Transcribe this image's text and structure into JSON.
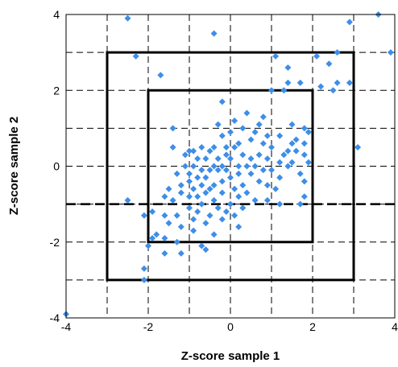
{
  "chart_data": {
    "type": "scatter",
    "title": "",
    "xlabel": "Z-score sample 1",
    "ylabel": "Z-score sample 2",
    "xlim": [
      -4,
      4
    ],
    "ylim": [
      -4,
      4
    ],
    "x_ticks": [
      -4,
      -2,
      0,
      2,
      4
    ],
    "y_ticks": [
      -4,
      -2,
      0,
      2,
      4
    ],
    "x_tick_labels": [
      "-4",
      "-2",
      "0",
      "2",
      "4"
    ],
    "y_tick_labels": [
      "-4",
      "-2",
      "0",
      "2",
      "4"
    ],
    "grid": true,
    "grid_step": 1,
    "grid_style": "dashed",
    "marker": "diamond",
    "marker_color": "#3d8ee8",
    "reference_boxes": [
      {
        "xmin": -3,
        "xmax": 3,
        "ymin": -3,
        "ymax": 3,
        "style": "solid"
      },
      {
        "xmin": -2,
        "xmax": 2,
        "ymin": -2,
        "ymax": 2,
        "style": "solid"
      }
    ],
    "reference_lines": [
      {
        "orientation": "horizontal",
        "y": -1,
        "style": "dashed"
      }
    ],
    "series": [
      {
        "points": [
          [
            -2.5,
            3.9
          ],
          [
            -0.4,
            3.5
          ],
          [
            3.6,
            4.0
          ],
          [
            2.9,
            3.8
          ],
          [
            2.6,
            3.0
          ],
          [
            3.9,
            3.0
          ],
          [
            2.1,
            2.9
          ],
          [
            1.1,
            2.9
          ],
          [
            -2.3,
            2.9
          ],
          [
            2.4,
            2.7
          ],
          [
            1.4,
            2.6
          ],
          [
            -1.7,
            2.4
          ],
          [
            1.4,
            2.2
          ],
          [
            1.7,
            2.2
          ],
          [
            2.2,
            2.1
          ],
          [
            2.6,
            2.2
          ],
          [
            2.9,
            2.2
          ],
          [
            2.5,
            2.0
          ],
          [
            1.3,
            2.0
          ],
          [
            1.0,
            2.0
          ],
          [
            -0.2,
            1.7
          ],
          [
            0.4,
            1.4
          ],
          [
            0.8,
            1.3
          ],
          [
            -0.3,
            1.1
          ],
          [
            0.1,
            1.2
          ],
          [
            0.7,
            1.1
          ],
          [
            1.5,
            1.1
          ],
          [
            0.3,
            1.0
          ],
          [
            1.8,
            1.0
          ],
          [
            1.9,
            0.9
          ],
          [
            -1.4,
            1.0
          ],
          [
            0.6,
            0.9
          ],
          [
            0.0,
            0.9
          ],
          [
            -0.2,
            0.8
          ],
          [
            0.9,
            0.8
          ],
          [
            1.2,
            0.8
          ],
          [
            1.6,
            0.7
          ],
          [
            1.5,
            0.6
          ],
          [
            1.8,
            0.6
          ],
          [
            0.5,
            0.7
          ],
          [
            0.8,
            0.6
          ],
          [
            0.2,
            0.6
          ],
          [
            0.1,
            0.5
          ],
          [
            -0.1,
            0.5
          ],
          [
            -0.4,
            0.5
          ],
          [
            -0.7,
            0.5
          ],
          [
            1.0,
            0.5
          ],
          [
            1.4,
            0.4
          ],
          [
            1.6,
            0.4
          ],
          [
            1.8,
            0.3
          ],
          [
            -1.4,
            0.5
          ],
          [
            -1.0,
            0.4
          ],
          [
            -0.9,
            0.4
          ],
          [
            -0.5,
            0.4
          ],
          [
            0.3,
            0.3
          ],
          [
            0.7,
            0.3
          ],
          [
            -0.1,
            0.3
          ],
          [
            1.3,
            0.3
          ],
          [
            1.5,
            0.1
          ],
          [
            1.9,
            0.1
          ],
          [
            3.1,
            0.5
          ],
          [
            -1.1,
            0.3
          ],
          [
            -0.8,
            0.2
          ],
          [
            -0.6,
            0.2
          ],
          [
            -0.3,
            0.2
          ],
          [
            0.0,
            0.2
          ],
          [
            0.5,
            0.2
          ],
          [
            0.9,
            0.2
          ],
          [
            1.2,
            0.1
          ],
          [
            0.6,
            0.0
          ],
          [
            0.4,
            0.0
          ],
          [
            0.2,
            0.0
          ],
          [
            -0.2,
            0.0
          ],
          [
            -0.4,
            0.0
          ],
          [
            -0.9,
            0.0
          ],
          [
            -1.1,
            0.0
          ],
          [
            1.4,
            0.0
          ],
          [
            0.8,
            -0.1
          ],
          [
            1.0,
            -0.1
          ],
          [
            -0.1,
            -0.1
          ],
          [
            -0.3,
            -0.1
          ],
          [
            -0.5,
            -0.1
          ],
          [
            -0.7,
            -0.1
          ],
          [
            -1.0,
            -0.2
          ],
          [
            1.7,
            -0.2
          ],
          [
            -1.3,
            -0.2
          ],
          [
            0.2,
            -0.2
          ],
          [
            0.5,
            -0.2
          ],
          [
            0.0,
            -0.3
          ],
          [
            -0.6,
            -0.3
          ],
          [
            -0.8,
            -0.3
          ],
          [
            1.2,
            -0.3
          ],
          [
            1.8,
            -0.4
          ],
          [
            -0.2,
            -0.4
          ],
          [
            0.7,
            -0.4
          ],
          [
            -1.0,
            -0.4
          ],
          [
            -0.4,
            -0.5
          ],
          [
            -0.7,
            -0.5
          ],
          [
            0.3,
            -0.5
          ],
          [
            -1.2,
            -0.5
          ],
          [
            0.9,
            -0.5
          ],
          [
            -1.5,
            -0.6
          ],
          [
            -0.5,
            -0.6
          ],
          [
            -0.9,
            -0.6
          ],
          [
            0.1,
            -0.6
          ],
          [
            1.1,
            -0.6
          ],
          [
            -1.2,
            -0.7
          ],
          [
            -0.2,
            -0.7
          ],
          [
            -0.6,
            -0.7
          ],
          [
            0.4,
            -0.7
          ],
          [
            -1.6,
            -0.8
          ],
          [
            -1.0,
            -0.8
          ],
          [
            -0.8,
            -0.8
          ],
          [
            0.2,
            -0.8
          ],
          [
            1.8,
            -0.8
          ],
          [
            -0.4,
            -0.9
          ],
          [
            0.6,
            -0.9
          ],
          [
            -1.4,
            -0.9
          ],
          [
            -2.5,
            -0.9
          ],
          [
            -0.7,
            -1.0
          ],
          [
            0.0,
            -1.0
          ],
          [
            0.9,
            -0.9
          ],
          [
            1.2,
            -1.0
          ],
          [
            1.7,
            -1.0
          ],
          [
            -1.0,
            -1.1
          ],
          [
            -0.3,
            -1.1
          ],
          [
            0.3,
            -1.1
          ],
          [
            -0.1,
            -1.2
          ],
          [
            -1.9,
            -1.2
          ],
          [
            -0.8,
            -1.2
          ],
          [
            0.1,
            -1.3
          ],
          [
            -1.3,
            -1.3
          ],
          [
            -0.5,
            -1.3
          ],
          [
            -2.1,
            -1.3
          ],
          [
            -1.6,
            -1.3
          ],
          [
            -0.9,
            -1.4
          ],
          [
            -0.2,
            -1.4
          ],
          [
            -1.5,
            -1.5
          ],
          [
            -0.6,
            -1.5
          ],
          [
            0.2,
            -1.6
          ],
          [
            -1.2,
            -1.6
          ],
          [
            -0.9,
            -1.7
          ],
          [
            -1.8,
            -1.8
          ],
          [
            -0.4,
            -1.8
          ],
          [
            -1.9,
            -1.9
          ],
          [
            -1.6,
            -1.9
          ],
          [
            -1.3,
            -2.0
          ],
          [
            -0.7,
            -2.1
          ],
          [
            -2.0,
            -2.1
          ],
          [
            -0.6,
            -2.2
          ],
          [
            -1.2,
            -2.3
          ],
          [
            -1.6,
            -2.3
          ],
          [
            -2.1,
            -2.7
          ],
          [
            -2.1,
            -3.0
          ],
          [
            -4.0,
            -3.9
          ]
        ]
      }
    ]
  }
}
